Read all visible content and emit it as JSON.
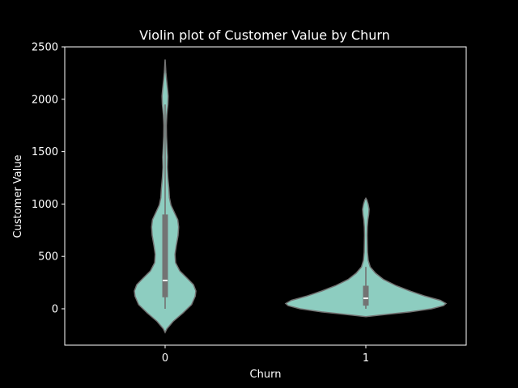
{
  "chart_data": {
    "type": "violin",
    "title": "Violin plot of Customer Value by Churn",
    "xlabel": "Churn",
    "ylabel": "Customer Value",
    "categories": [
      "0",
      "1"
    ],
    "ylim": [
      -350,
      2500
    ],
    "yticks": [
      0,
      500,
      1000,
      1500,
      2000,
      2500
    ],
    "grid": false,
    "colors": {
      "background": "#000000",
      "violin_fill": "#8dcdc0",
      "violin_edge": "#737373",
      "box": "#737373",
      "median": "#ffffff",
      "axes": "#ffffff"
    },
    "violins": [
      {
        "category": "0",
        "box": {
          "whisker_low": 0,
          "q1": 110,
          "median": 270,
          "q3": 900,
          "whisker_high": 1950
        },
        "density_extent": [
          -225,
          2380
        ]
      },
      {
        "category": "1",
        "box": {
          "whisker_low": 0,
          "q1": 30,
          "median": 100,
          "q3": 220,
          "whisker_high": 400
        },
        "density_extent": [
          -75,
          1055
        ]
      }
    ]
  }
}
